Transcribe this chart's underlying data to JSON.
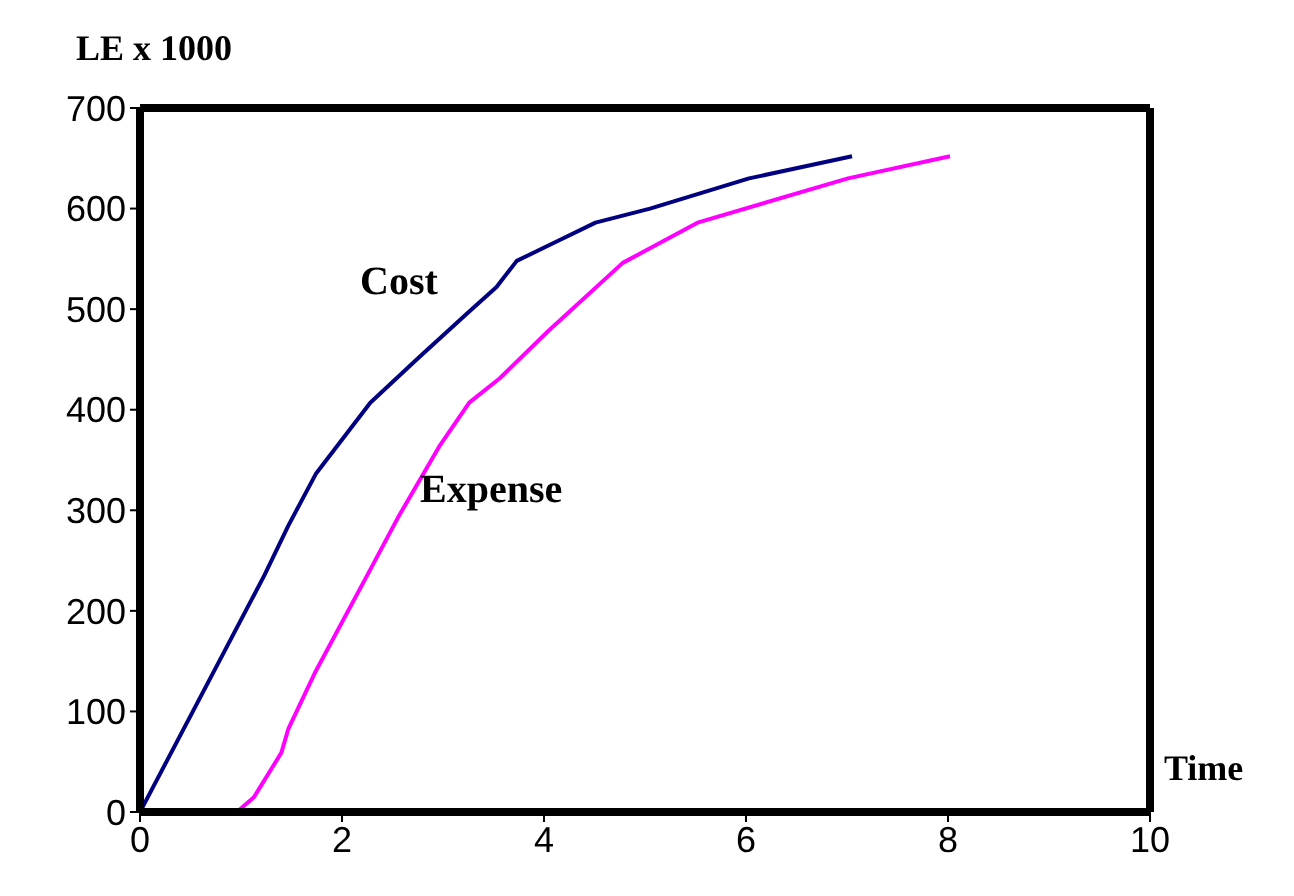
{
  "chart_data": {
    "type": "line",
    "xlabel": "Time",
    "ylabel": "LE x 1000",
    "xlim": [
      0,
      10
    ],
    "xticks": [
      0,
      2,
      4,
      6,
      8,
      10
    ],
    "ylim": [
      0,
      700
    ],
    "yticks": [
      0,
      100,
      200,
      300,
      400,
      500,
      600,
      700
    ],
    "grid": false,
    "legend": false,
    "marker": "none",
    "line_style": "solid",
    "series": [
      {
        "color": "#000080",
        "x": [
          0,
          1.23,
          1.47,
          1.74,
          2.28,
          2.75,
          3.23,
          3.53,
          3.73,
          4.1,
          4.51,
          5.05,
          6.03,
          7.05
        ],
        "values": [
          0,
          235,
          285,
          336,
          407,
          451,
          495,
          522,
          548,
          566,
          586,
          600,
          630,
          652
        ]
      },
      {
        "color": "#ff00ff",
        "x": [
          0.96,
          1.13,
          1.4,
          1.47,
          1.74,
          2.28,
          2.55,
          2.96,
          3.26,
          3.56,
          4.04,
          4.78,
          5.52,
          7.01,
          8.02
        ],
        "values": [
          0,
          15,
          59,
          83,
          140,
          241,
          292,
          363,
          407,
          431,
          478,
          546,
          586,
          630,
          652
        ]
      }
    ],
    "annotations": [
      "Cost",
      "Expense"
    ]
  }
}
